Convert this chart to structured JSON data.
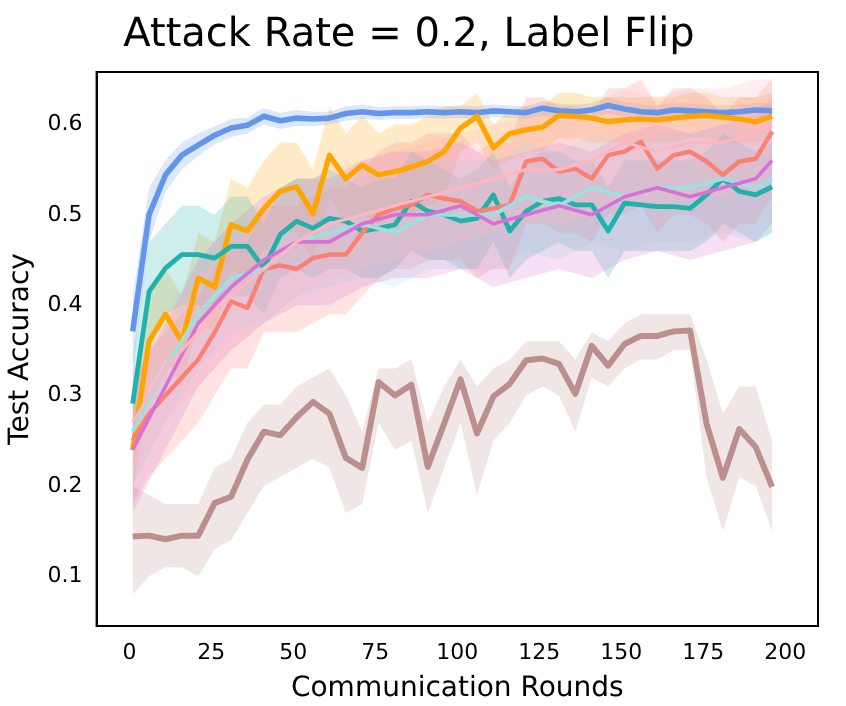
{
  "chart_data": {
    "type": "line",
    "title": "Attack Rate = 0.2, Label Flip",
    "xlabel": "Communication Rounds",
    "ylabel": "Test Accuracy",
    "x": [
      1,
      6,
      11,
      16,
      21,
      26,
      31,
      36,
      41,
      46,
      51,
      56,
      61,
      66,
      71,
      76,
      81,
      86,
      91,
      96,
      101,
      106,
      111,
      116,
      121,
      126,
      131,
      136,
      141,
      146,
      151,
      156,
      161,
      166,
      171,
      176,
      181,
      186,
      191,
      196
    ],
    "xlim": [
      -10,
      210
    ],
    "xticks": [
      0,
      25,
      50,
      75,
      100,
      125,
      150,
      175,
      200
    ],
    "ylim": [
      0.045,
      0.658
    ],
    "yticks": [
      0.1,
      0.2,
      0.3,
      0.4,
      0.5,
      0.6
    ],
    "grid": false,
    "legend": false,
    "marker": "none",
    "line_style": "solid",
    "series": [
      {
        "color": "#ffb6c1",
        "x": [
          1,
          11,
          21,
          31,
          41,
          51,
          61,
          71,
          81,
          91,
          101,
          111,
          121,
          131,
          141,
          151,
          161,
          171,
          181,
          191,
          196
        ],
        "values": [
          0.27,
          0.33,
          0.37,
          0.41,
          0.44,
          0.47,
          0.49,
          0.5,
          0.51,
          0.52,
          0.53,
          0.54,
          0.55,
          0.55,
          0.56,
          0.58,
          0.57,
          0.58,
          0.58,
          0.59,
          0.6
        ],
        "lower": [
          0.21,
          0.27,
          0.31,
          0.35,
          0.38,
          0.41,
          0.43,
          0.44,
          0.45,
          0.46,
          0.47,
          0.48,
          0.49,
          0.49,
          0.5,
          0.52,
          0.51,
          0.52,
          0.52,
          0.53,
          0.54
        ],
        "upper": [
          0.33,
          0.39,
          0.43,
          0.47,
          0.5,
          0.53,
          0.55,
          0.56,
          0.57,
          0.58,
          0.59,
          0.6,
          0.61,
          0.61,
          0.62,
          0.64,
          0.63,
          0.64,
          0.64,
          0.65,
          0.65
        ]
      },
      {
        "color": "#da70d6",
        "x": [
          1,
          11,
          21,
          31,
          41,
          51,
          61,
          71,
          81,
          91,
          101,
          111,
          121,
          131,
          141,
          151,
          161,
          171,
          181,
          191,
          196
        ],
        "values": [
          0.24,
          0.31,
          0.38,
          0.42,
          0.45,
          0.47,
          0.47,
          0.49,
          0.5,
          0.5,
          0.51,
          0.49,
          0.5,
          0.51,
          0.5,
          0.52,
          0.53,
          0.52,
          0.53,
          0.54,
          0.56
        ],
        "lower": [
          0.17,
          0.24,
          0.31,
          0.35,
          0.38,
          0.4,
          0.4,
          0.42,
          0.43,
          0.43,
          0.44,
          0.42,
          0.43,
          0.44,
          0.43,
          0.45,
          0.46,
          0.45,
          0.46,
          0.47,
          0.49
        ],
        "upper": [
          0.31,
          0.38,
          0.45,
          0.49,
          0.52,
          0.54,
          0.54,
          0.56,
          0.57,
          0.57,
          0.58,
          0.56,
          0.57,
          0.58,
          0.57,
          0.59,
          0.6,
          0.59,
          0.6,
          0.61,
          0.63
        ]
      },
      {
        "color": "#9fdfe0",
        "x": [
          1,
          11,
          21,
          31,
          41,
          51,
          61,
          71,
          81,
          91,
          101,
          111,
          121,
          131,
          141,
          151,
          161,
          171,
          181,
          191,
          196
        ],
        "values": [
          0.26,
          0.33,
          0.39,
          0.43,
          0.44,
          0.47,
          0.48,
          0.49,
          0.48,
          0.5,
          0.5,
          0.5,
          0.52,
          0.51,
          0.53,
          0.52,
          0.53,
          0.53,
          0.54,
          0.53,
          0.54
        ],
        "lower": [
          0.2,
          0.27,
          0.33,
          0.37,
          0.38,
          0.41,
          0.42,
          0.43,
          0.42,
          0.44,
          0.44,
          0.44,
          0.46,
          0.45,
          0.47,
          0.46,
          0.47,
          0.47,
          0.48,
          0.47,
          0.48
        ],
        "upper": [
          0.32,
          0.39,
          0.45,
          0.49,
          0.5,
          0.53,
          0.54,
          0.55,
          0.54,
          0.56,
          0.56,
          0.56,
          0.58,
          0.57,
          0.59,
          0.58,
          0.59,
          0.59,
          0.6,
          0.59,
          0.6
        ]
      },
      {
        "color": "#fa8072",
        "values": [
          0.25,
          0.28,
          0.3,
          0.32,
          0.34,
          0.37,
          0.404,
          0.397,
          0.44,
          0.444,
          0.44,
          0.452,
          0.456,
          0.456,
          0.48,
          0.5,
          0.507,
          0.511,
          0.522,
          0.518,
          0.515,
          0.504,
          0.507,
          0.511,
          0.559,
          0.562,
          0.548,
          0.551,
          0.54,
          0.566,
          0.57,
          0.581,
          0.551,
          0.566,
          0.57,
          0.559,
          0.544,
          0.559,
          0.562,
          0.592
        ],
        "lower": [
          0.18,
          0.21,
          0.23,
          0.25,
          0.27,
          0.3,
          0.33,
          0.33,
          0.37,
          0.37,
          0.37,
          0.38,
          0.39,
          0.39,
          0.41,
          0.43,
          0.44,
          0.44,
          0.45,
          0.45,
          0.45,
          0.43,
          0.44,
          0.44,
          0.49,
          0.49,
          0.48,
          0.48,
          0.47,
          0.5,
          0.5,
          0.51,
          0.48,
          0.5,
          0.5,
          0.49,
          0.47,
          0.49,
          0.49,
          0.52
        ],
        "upper": [
          0.32,
          0.35,
          0.37,
          0.39,
          0.41,
          0.44,
          0.47,
          0.47,
          0.51,
          0.51,
          0.51,
          0.52,
          0.53,
          0.53,
          0.55,
          0.57,
          0.58,
          0.58,
          0.59,
          0.59,
          0.59,
          0.57,
          0.58,
          0.58,
          0.63,
          0.63,
          0.62,
          0.62,
          0.61,
          0.64,
          0.64,
          0.65,
          0.62,
          0.64,
          0.64,
          0.63,
          0.61,
          0.63,
          0.63,
          0.65
        ]
      },
      {
        "color": "#20b2aa",
        "values": [
          0.291,
          0.415,
          0.441,
          0.456,
          0.456,
          0.452,
          0.465,
          0.465,
          0.441,
          0.478,
          0.493,
          0.485,
          0.496,
          0.493,
          0.482,
          0.485,
          0.489,
          0.515,
          0.504,
          0.5,
          0.493,
          0.496,
          0.522,
          0.482,
          0.504,
          0.515,
          0.518,
          0.511,
          0.511,
          0.482,
          0.513,
          0.511,
          0.509,
          0.509,
          0.507,
          0.522,
          0.54,
          0.526,
          0.522,
          0.531
        ],
        "lower": [
          0.24,
          0.36,
          0.39,
          0.4,
          0.4,
          0.4,
          0.41,
          0.41,
          0.39,
          0.43,
          0.44,
          0.43,
          0.44,
          0.44,
          0.43,
          0.43,
          0.44,
          0.46,
          0.45,
          0.45,
          0.44,
          0.44,
          0.47,
          0.43,
          0.45,
          0.46,
          0.47,
          0.46,
          0.46,
          0.43,
          0.46,
          0.46,
          0.46,
          0.46,
          0.46,
          0.47,
          0.49,
          0.48,
          0.47,
          0.48
        ],
        "upper": [
          0.34,
          0.47,
          0.49,
          0.51,
          0.51,
          0.5,
          0.52,
          0.52,
          0.49,
          0.53,
          0.54,
          0.54,
          0.55,
          0.54,
          0.53,
          0.54,
          0.54,
          0.57,
          0.56,
          0.55,
          0.54,
          0.55,
          0.57,
          0.53,
          0.56,
          0.57,
          0.57,
          0.56,
          0.56,
          0.53,
          0.56,
          0.56,
          0.56,
          0.56,
          0.56,
          0.57,
          0.59,
          0.58,
          0.57,
          0.58
        ]
      },
      {
        "color": "#ffa500",
        "values": [
          0.24,
          0.36,
          0.39,
          0.36,
          0.43,
          0.42,
          0.489,
          0.482,
          0.507,
          0.526,
          0.531,
          0.501,
          0.566,
          0.54,
          0.555,
          0.544,
          0.548,
          0.553,
          0.559,
          0.57,
          0.596,
          0.609,
          0.574,
          0.59,
          0.594,
          0.597,
          0.61,
          0.609,
          0.607,
          0.603,
          0.605,
          0.606,
          0.605,
          0.607,
          0.609,
          0.61,
          0.608,
          0.606,
          0.603,
          0.609
        ],
        "lower": [
          0.19,
          0.31,
          0.34,
          0.31,
          0.38,
          0.37,
          0.44,
          0.43,
          0.46,
          0.48,
          0.48,
          0.45,
          0.52,
          0.49,
          0.5,
          0.49,
          0.5,
          0.5,
          0.51,
          0.52,
          0.57,
          0.58,
          0.55,
          0.56,
          0.57,
          0.57,
          0.585,
          0.585,
          0.58,
          0.58,
          0.58,
          0.58,
          0.58,
          0.58,
          0.585,
          0.585,
          0.58,
          0.58,
          0.58,
          0.585
        ],
        "upper": [
          0.29,
          0.41,
          0.44,
          0.41,
          0.48,
          0.47,
          0.54,
          0.53,
          0.56,
          0.58,
          0.58,
          0.55,
          0.62,
          0.59,
          0.61,
          0.59,
          0.6,
          0.6,
          0.61,
          0.62,
          0.62,
          0.635,
          0.6,
          0.615,
          0.62,
          0.62,
          0.635,
          0.635,
          0.63,
          0.63,
          0.63,
          0.63,
          0.63,
          0.63,
          0.635,
          0.635,
          0.63,
          0.63,
          0.63,
          0.635
        ]
      },
      {
        "color": "#6495ed",
        "values": [
          0.371,
          0.5,
          0.544,
          0.566,
          0.577,
          0.588,
          0.596,
          0.599,
          0.609,
          0.604,
          0.607,
          0.606,
          0.607,
          0.612,
          0.614,
          0.612,
          0.613,
          0.613,
          0.614,
          0.613,
          0.614,
          0.613,
          0.615,
          0.614,
          0.613,
          0.618,
          0.615,
          0.614,
          0.616,
          0.621,
          0.617,
          0.614,
          0.613,
          0.616,
          0.615,
          0.614,
          0.613,
          0.614,
          0.616,
          0.615
        ],
        "lower": [
          0.33,
          0.47,
          0.525,
          0.55,
          0.565,
          0.578,
          0.586,
          0.59,
          0.6,
          0.595,
          0.598,
          0.598,
          0.6,
          0.604,
          0.606,
          0.605,
          0.606,
          0.606,
          0.607,
          0.606,
          0.607,
          0.606,
          0.608,
          0.607,
          0.606,
          0.61,
          0.607,
          0.606,
          0.608,
          0.612,
          0.609,
          0.606,
          0.605,
          0.608,
          0.607,
          0.606,
          0.605,
          0.606,
          0.608,
          0.607
        ],
        "upper": [
          0.41,
          0.53,
          0.56,
          0.58,
          0.59,
          0.598,
          0.606,
          0.608,
          0.618,
          0.613,
          0.616,
          0.614,
          0.614,
          0.62,
          0.622,
          0.619,
          0.62,
          0.62,
          0.621,
          0.62,
          0.621,
          0.62,
          0.622,
          0.621,
          0.62,
          0.626,
          0.623,
          0.622,
          0.624,
          0.63,
          0.625,
          0.622,
          0.621,
          0.624,
          0.623,
          0.622,
          0.621,
          0.622,
          0.624,
          0.623
        ]
      },
      {
        "color": "#bc8f8f",
        "values": [
          0.144,
          0.145,
          0.141,
          0.145,
          0.145,
          0.181,
          0.188,
          0.229,
          0.26,
          0.256,
          0.276,
          0.293,
          0.28,
          0.231,
          0.22,
          0.315,
          0.3,
          0.312,
          0.221,
          0.269,
          0.318,
          0.258,
          0.299,
          0.313,
          0.339,
          0.341,
          0.335,
          0.302,
          0.355,
          0.333,
          0.357,
          0.366,
          0.366,
          0.371,
          0.372,
          0.269,
          0.209,
          0.263,
          0.243,
          0.199
        ],
        "lower": [
          0.08,
          0.1,
          0.11,
          0.11,
          0.1,
          0.13,
          0.14,
          0.17,
          0.2,
          0.21,
          0.22,
          0.23,
          0.22,
          0.17,
          0.18,
          0.27,
          0.24,
          0.25,
          0.17,
          0.22,
          0.27,
          0.19,
          0.25,
          0.27,
          0.3,
          0.31,
          0.3,
          0.26,
          0.32,
          0.31,
          0.33,
          0.34,
          0.34,
          0.35,
          0.35,
          0.21,
          0.15,
          0.21,
          0.2,
          0.15
        ],
        "upper": [
          0.2,
          0.19,
          0.18,
          0.18,
          0.18,
          0.22,
          0.23,
          0.27,
          0.29,
          0.29,
          0.31,
          0.32,
          0.33,
          0.3,
          0.26,
          0.33,
          0.33,
          0.34,
          0.27,
          0.31,
          0.34,
          0.31,
          0.33,
          0.34,
          0.36,
          0.36,
          0.36,
          0.34,
          0.37,
          0.36,
          0.38,
          0.39,
          0.39,
          0.39,
          0.39,
          0.34,
          0.28,
          0.31,
          0.31,
          0.25
        ]
      }
    ]
  }
}
